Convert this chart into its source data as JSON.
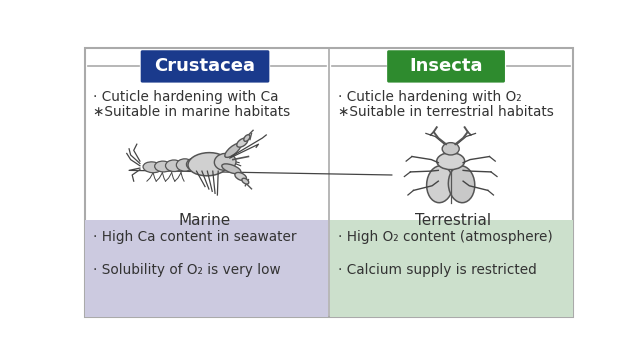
{
  "title_left": "Crustacea",
  "title_right": "Insecta",
  "title_left_color": "#1a3a8c",
  "title_right_color": "#2e8b2e",
  "title_text_color": "#ffffff",
  "left_top_lines": [
    "· Cuticle hardening with Ca",
    "∗Suitable in marine habitats"
  ],
  "right_top_lines": [
    "· Cuticle hardening with O₂",
    "∗Suitable in terrestrial habitats"
  ],
  "left_habitat": "Marine",
  "right_habitat": "Terrestrial",
  "left_bottom_lines": [
    "· High Ca content in seawater",
    "· Solubility of O₂ is very low"
  ],
  "right_bottom_lines": [
    "· High O₂ content (atmosphere)",
    "· Calcium supply is restricted"
  ],
  "left_bottom_bg": "#cccae0",
  "right_bottom_bg": "#cce0cc",
  "outer_border_color": "#aaaaaa",
  "divider_color": "#aaaaaa",
  "bg_color": "#ffffff",
  "text_color": "#333333"
}
